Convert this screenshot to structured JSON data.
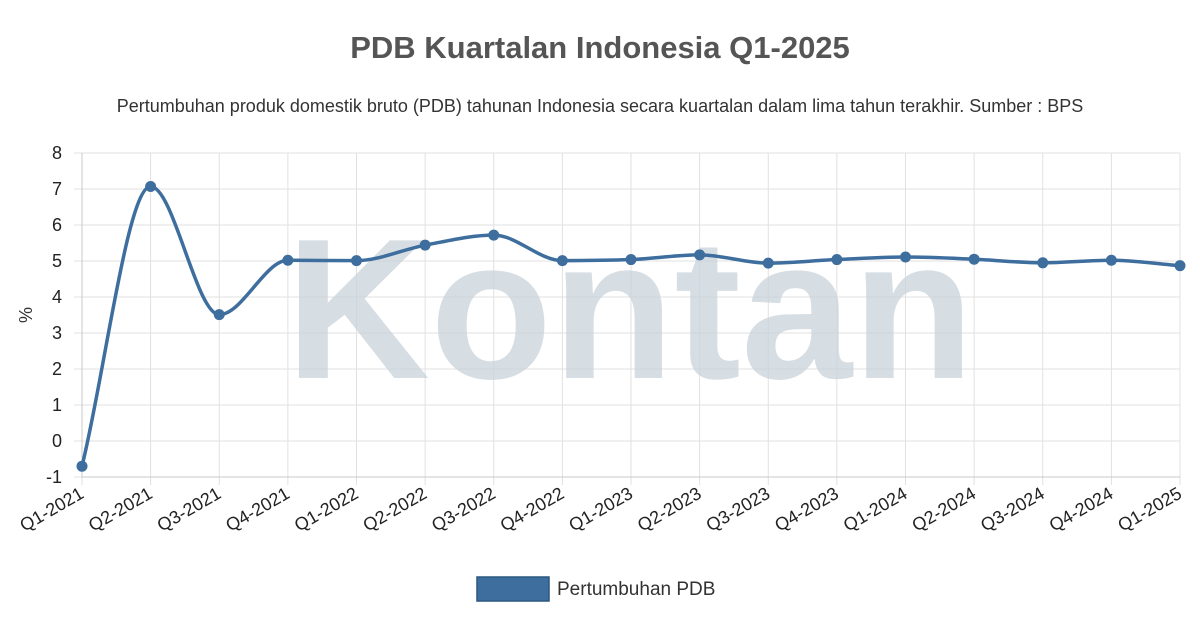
{
  "chart_data": {
    "type": "line",
    "title": "PDB Kuartalan Indonesia Q1-2025",
    "subtitle": "Pertumbuhan produk domestik bruto (PDB) tahunan Indonesia secara kuartalan dalam lima tahun terakhir. Sumber : BPS",
    "xlabel": "",
    "ylabel": "%",
    "ylim": [
      -1,
      8
    ],
    "yticks": [
      -1,
      0,
      1,
      2,
      3,
      4,
      5,
      6,
      7,
      8
    ],
    "grid": true,
    "legend_position": "bottom",
    "categories": [
      "Q1-2021",
      "Q2-2021",
      "Q3-2021",
      "Q4-2021",
      "Q1-2022",
      "Q2-2022",
      "Q3-2022",
      "Q4-2022",
      "Q1-2023",
      "Q2-2023",
      "Q3-2023",
      "Q4-2023",
      "Q1-2024",
      "Q2-2024",
      "Q3-2024",
      "Q4-2024",
      "Q1-2025"
    ],
    "series": [
      {
        "name": "Pertumbuhan PDB",
        "color": "#3e6e9e",
        "values": [
          -0.7,
          7.07,
          3.51,
          5.02,
          5.01,
          5.44,
          5.72,
          5.01,
          5.04,
          5.17,
          4.94,
          5.04,
          5.11,
          5.05,
          4.95,
          5.02,
          4.87
        ]
      }
    ]
  },
  "watermark": "Kontan"
}
